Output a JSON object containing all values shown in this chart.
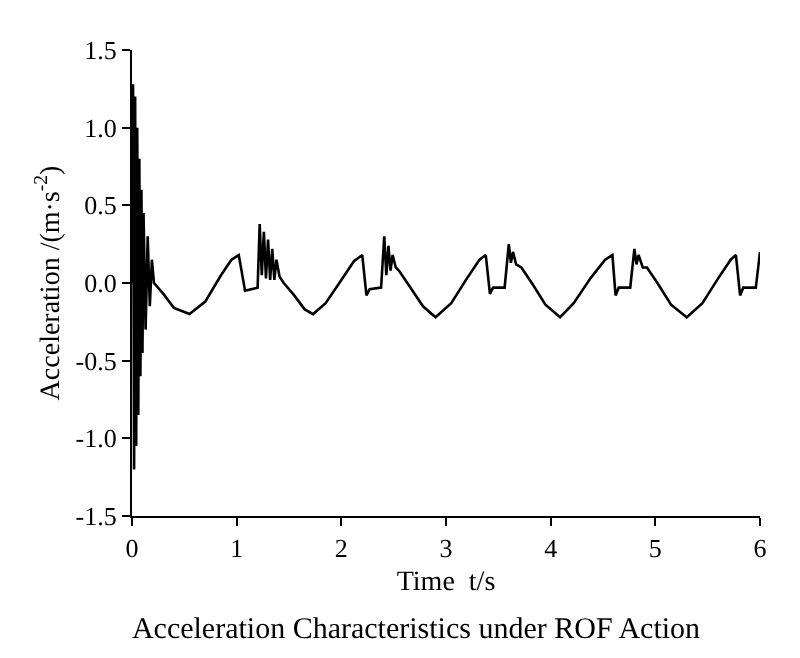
{
  "chart_data": {
    "type": "line",
    "title": "Acceleration Characteristics under ROF Action",
    "xlabel": "Time  t/s",
    "ylabel": "Acceleration /(m·s$^{-2}$)",
    "xlim": [
      0,
      6
    ],
    "xticks": [
      0,
      1,
      2,
      3,
      4,
      5,
      6
    ],
    "ylim": [
      -1.5,
      1.5
    ],
    "yticks": [
      {
        "value": -1.5,
        "label": "-1.5"
      },
      {
        "value": -1,
        "label": "-1.0"
      },
      {
        "value": -0.5,
        "label": "-0.5"
      },
      {
        "value": 0,
        "label": "0.0"
      },
      {
        "value": 0.5,
        "label": "0.5"
      },
      {
        "value": 1,
        "label": "1.0"
      },
      {
        "value": 1.5,
        "label": "1.5"
      }
    ],
    "grid": false,
    "legend": false,
    "marker": "none",
    "line_style": "solid",
    "series": [
      {
        "color": "#000000",
        "x": [
          0,
          0.01,
          0.02,
          0.03,
          0.04,
          0.05,
          0.06,
          0.07,
          0.08,
          0.09,
          0.1,
          0.11,
          0.13,
          0.15,
          0.17,
          0.19,
          0.21,
          0.3,
          0.4,
          0.55,
          0.7,
          0.85,
          0.95,
          1.02,
          1.08,
          1.2,
          1.22,
          1.24,
          1.26,
          1.28,
          1.3,
          1.32,
          1.34,
          1.36,
          1.38,
          1.41,
          1.45,
          1.55,
          1.65,
          1.73,
          1.85,
          2.0,
          2.12,
          2.2,
          2.24,
          2.27,
          2.38,
          2.41,
          2.43,
          2.45,
          2.47,
          2.49,
          2.52,
          2.55,
          2.65,
          2.78,
          2.9,
          3.05,
          3.2,
          3.32,
          3.38,
          3.42,
          3.45,
          3.56,
          3.6,
          3.62,
          3.64,
          3.67,
          3.72,
          3.82,
          3.95,
          4.09,
          4.22,
          4.38,
          4.52,
          4.59,
          4.62,
          4.65,
          4.76,
          4.8,
          4.82,
          4.84,
          4.88,
          4.92,
          5.02,
          5.15,
          5.3,
          5.45,
          5.6,
          5.72,
          5.77,
          5.81,
          5.84,
          5.96,
          6.0
        ],
        "values": [
          0,
          1.28,
          -1.2,
          1.2,
          -1.05,
          1.0,
          -0.85,
          0.8,
          -0.6,
          0.6,
          -0.45,
          0.45,
          -0.3,
          0.3,
          -0.15,
          0.15,
          0.0,
          -0.07,
          -0.16,
          -0.2,
          -0.12,
          0.05,
          0.15,
          0.18,
          -0.05,
          -0.03,
          0.38,
          0.05,
          0.33,
          0.03,
          0.28,
          0.02,
          0.22,
          0.02,
          0.15,
          0.04,
          0.0,
          -0.08,
          -0.17,
          -0.2,
          -0.13,
          0.02,
          0.14,
          0.18,
          -0.08,
          -0.04,
          -0.03,
          0.3,
          0.05,
          0.24,
          0.08,
          0.18,
          0.1,
          0.08,
          -0.02,
          -0.15,
          -0.22,
          -0.13,
          0.03,
          0.15,
          0.18,
          -0.07,
          -0.03,
          -0.03,
          0.25,
          0.13,
          0.2,
          0.12,
          0.1,
          0.0,
          -0.14,
          -0.22,
          -0.13,
          0.03,
          0.15,
          0.18,
          -0.08,
          -0.03,
          -0.03,
          0.22,
          0.12,
          0.18,
          0.1,
          0.1,
          0.0,
          -0.14,
          -0.22,
          -0.13,
          0.03,
          0.15,
          0.18,
          -0.08,
          -0.03,
          -0.03,
          0.2
        ]
      }
    ]
  }
}
